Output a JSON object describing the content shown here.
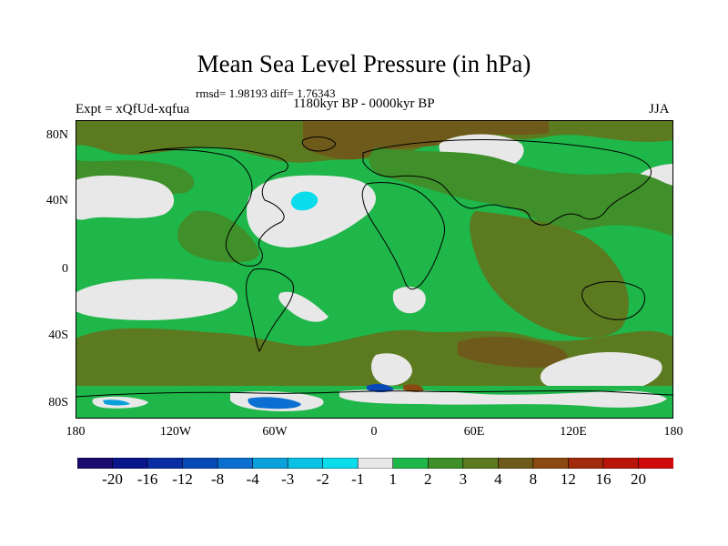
{
  "header": {
    "title": "Mean Sea Level Pressure (in hPa)",
    "stats": "rmsd= 1.98193 diff= 1.76343",
    "period": "1180kyr BP - 0000kyr BP",
    "experiment": "Expt = xQfUd-xqfua",
    "season": "JJA"
  },
  "axes": {
    "lat_ticks": [
      {
        "label": "80N",
        "value": 80
      },
      {
        "label": "40N",
        "value": 40
      },
      {
        "label": "0",
        "value": 0
      },
      {
        "label": "40S",
        "value": -40
      },
      {
        "label": "80S",
        "value": -80
      }
    ],
    "lon_ticks": [
      {
        "label": "180",
        "value": -180
      },
      {
        "label": "120W",
        "value": -120
      },
      {
        "label": "60W",
        "value": -60
      },
      {
        "label": "0",
        "value": 0
      },
      {
        "label": "60E",
        "value": 60
      },
      {
        "label": "120E",
        "value": 120
      },
      {
        "label": "180",
        "value": 180
      }
    ]
  },
  "colorbar": {
    "colors": [
      "#1d0a6e",
      "#0a168c",
      "#0a2da4",
      "#0a4ab8",
      "#0a6fd0",
      "#0aa0dc",
      "#0ac0e4",
      "#0adcec",
      "#e8e8e8",
      "#1fb64a",
      "#3f8f2a",
      "#5c7a20",
      "#6e5a1a",
      "#8a4a12",
      "#a02a0a",
      "#b8140a",
      "#d00a0a"
    ],
    "labels": [
      "-20",
      "-16",
      "-12",
      "-8",
      "-4",
      "-3",
      "-2",
      "-1",
      "1",
      "2",
      "3",
      "4",
      "8",
      "12",
      "16",
      "20"
    ]
  },
  "colors": {
    "background_land_ocean": "#1fb64a",
    "mid": "#3f8f2a",
    "high": "#5c7a20",
    "higher": "#6e5a1a",
    "low": "#e8e8e8",
    "neg": "#0adcec"
  }
}
